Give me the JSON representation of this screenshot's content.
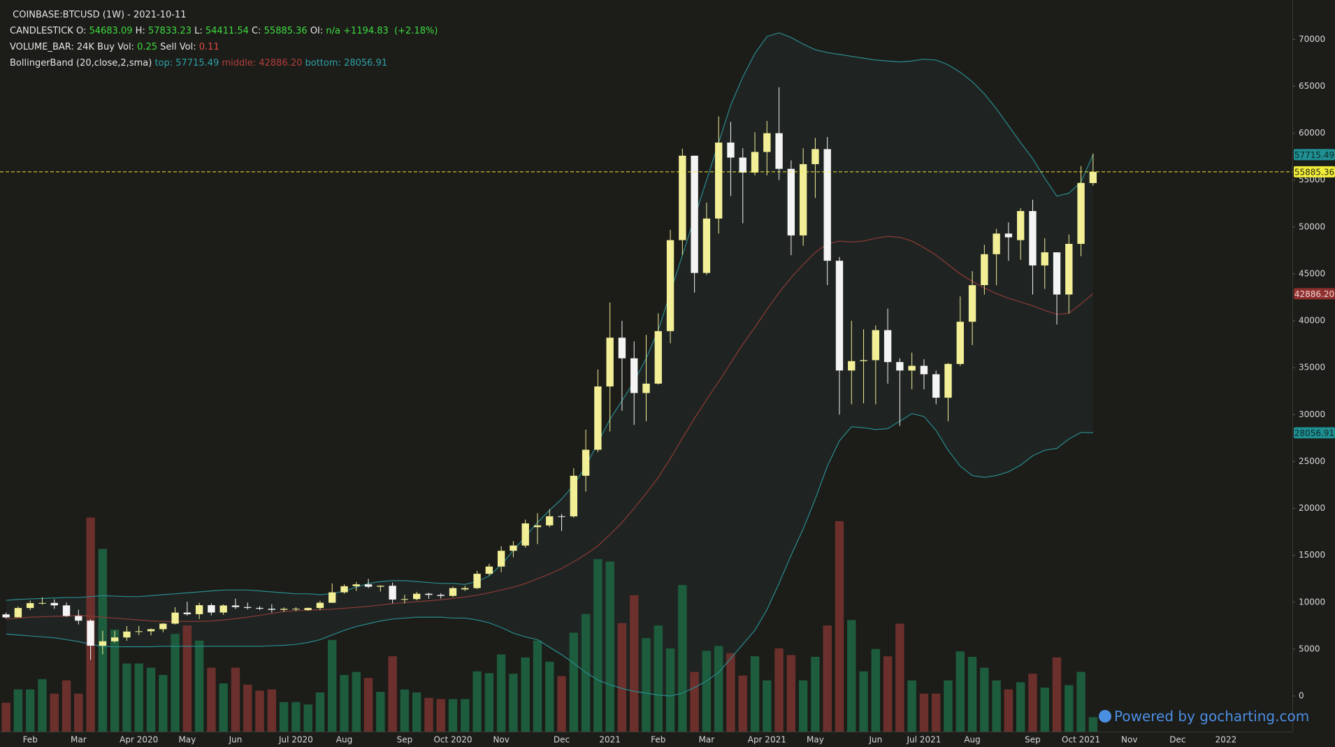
{
  "chart_data": {
    "type": "candlestick",
    "title": "COINBASE:BTCUSD (1W) - 2021-10-11",
    "categories": [
      null,
      null,
      "Feb",
      null,
      null,
      null,
      "Mar",
      null,
      null,
      null,
      null,
      "Apr 2020",
      null,
      null,
      null,
      "May",
      null,
      null,
      null,
      "Jun",
      null,
      null,
      null,
      null,
      "Jul 2020",
      null,
      null,
      null,
      "Aug",
      null,
      null,
      null,
      null,
      "Sep",
      null,
      null,
      null,
      "Oct 2020",
      null,
      null,
      null,
      "Nov",
      null,
      null,
      null,
      null,
      "Dec",
      null,
      null,
      null,
      "2021",
      null,
      null,
      null,
      "Feb",
      null,
      null,
      null,
      "Mar",
      null,
      null,
      null,
      null,
      "Apr 2021",
      null,
      null,
      null,
      "May",
      null,
      null,
      null,
      null,
      "Jun",
      null,
      null,
      null,
      "Jul 2021",
      null,
      null,
      null,
      "Aug",
      null,
      null,
      null,
      null,
      "Sep",
      null,
      null,
      null,
      "Oct 2021",
      null,
      null,
      null,
      "Nov",
      null,
      null,
      null,
      "Dec",
      null,
      null,
      null,
      "2022",
      null,
      null,
      null,
      null,
      null
    ],
    "series": [
      {
        "name": "CANDLESTICK",
        "up_color": "#f3ef96",
        "down_color": "#f4f4f4",
        "open": [
          8700,
          8380,
          9380,
          9900,
          9920,
          9660,
          8530,
          8030,
          5360,
          5830,
          6240,
          6870,
          6900,
          7120,
          7710,
          8890,
          8720,
          9680,
          8900,
          9650,
          9480,
          9390,
          9300,
          9190,
          9290,
          9160,
          9380,
          9940,
          11050,
          11700,
          11900,
          11650,
          11750,
          10280,
          10330,
          10900,
          10780,
          10670,
          11360,
          11500,
          13030,
          13800,
          15480,
          16040,
          18000,
          18190,
          19160,
          19150,
          23480,
          26250,
          33000,
          38200,
          36000,
          32300,
          33300,
          38900,
          48600,
          57600,
          45100,
          50900,
          59000,
          57400,
          55800,
          58000,
          60000,
          56200,
          49100,
          56700,
          58300,
          46400,
          34700,
          35700,
          35800,
          39000,
          35600,
          34700,
          35200,
          34300,
          31800,
          35400,
          39900,
          43800,
          47100,
          49300,
          48600,
          51700,
          45900,
          47300,
          42800,
          48200,
          54683.09,
          null,
          null,
          null,
          null,
          null,
          null,
          null,
          null,
          null,
          null,
          null,
          null,
          null,
          null,
          null,
          null
        ],
        "high": [
          8900,
          9550,
          10170,
          10500,
          10300,
          9960,
          9190,
          8180,
          6950,
          6950,
          7450,
          7470,
          7200,
          7770,
          9460,
          10050,
          9940,
          9870,
          9760,
          10380,
          9960,
          9580,
          9780,
          9450,
          9460,
          9440,
          10160,
          12000,
          11900,
          12150,
          12480,
          11800,
          12090,
          10800,
          11100,
          11000,
          10950,
          11650,
          11750,
          13350,
          14100,
          15960,
          16500,
          18800,
          19480,
          19920,
          19400,
          24280,
          28400,
          34800,
          41950,
          40000,
          37800,
          38500,
          40800,
          49700,
          58350,
          57600,
          52600,
          61800,
          61200,
          58400,
          60100,
          61300,
          64900,
          57100,
          58400,
          59500,
          59600,
          46800,
          40000,
          39100,
          39500,
          41300,
          36000,
          36600,
          35900,
          34700,
          35500,
          42600,
          45300,
          48100,
          49800,
          50500,
          52000,
          52900,
          48800,
          47300,
          49200,
          56500,
          57833.23,
          null,
          null,
          null,
          null,
          null,
          null,
          null,
          null,
          null,
          null,
          null,
          null,
          null,
          null,
          null,
          null
        ],
        "low": [
          8270,
          8380,
          9150,
          9730,
          9300,
          8450,
          7630,
          3860,
          4440,
          5680,
          5880,
          6500,
          6470,
          6790,
          7630,
          8560,
          8200,
          8600,
          8640,
          9270,
          9230,
          9170,
          8900,
          8960,
          9050,
          9080,
          9150,
          9920,
          10900,
          11200,
          11500,
          11130,
          9900,
          9870,
          10200,
          10370,
          10380,
          10550,
          11200,
          11400,
          12850,
          13200,
          14800,
          15800,
          16200,
          18000,
          17600,
          19000,
          21800,
          26000,
          28200,
          30400,
          28900,
          29300,
          33200,
          37600,
          47000,
          43000,
          44900,
          49300,
          53300,
          50400,
          55500,
          55500,
          55000,
          47000,
          48000,
          53100,
          43800,
          30000,
          31100,
          31200,
          31100,
          33300,
          28800,
          32700,
          32700,
          31100,
          29300,
          35200,
          37400,
          42800,
          43800,
          46400,
          46500,
          42800,
          43400,
          39600,
          40800,
          46900,
          54411.54,
          null,
          null,
          null,
          null,
          null,
          null,
          null,
          null,
          null,
          null,
          null,
          null,
          null,
          null,
          null,
          null
        ],
        "close": [
          8380,
          9380,
          9900,
          9920,
          9660,
          8530,
          8030,
          5360,
          5830,
          6240,
          6870,
          6900,
          7120,
          7710,
          8890,
          8720,
          9680,
          8900,
          9650,
          9480,
          9390,
          9300,
          9190,
          9290,
          9300,
          9380,
          9940,
          11050,
          11700,
          11900,
          11650,
          11750,
          10280,
          10330,
          10900,
          10780,
          10670,
          11500,
          11500,
          13030,
          13800,
          15480,
          16040,
          18400,
          18190,
          19160,
          19150,
          23480,
          26250,
          33000,
          38200,
          36000,
          32300,
          33300,
          38900,
          48600,
          57600,
          45100,
          50900,
          59000,
          57400,
          55800,
          58000,
          60000,
          56200,
          49100,
          56700,
          58300,
          46400,
          34700,
          35700,
          35800,
          39000,
          35600,
          34700,
          35200,
          34300,
          31800,
          35400,
          39900,
          43800,
          47100,
          49300,
          48900,
          51700,
          45900,
          47300,
          42800,
          48200,
          54700,
          55885.36,
          null,
          null,
          null,
          null,
          null,
          null,
          null,
          null,
          null,
          null,
          null,
          null,
          null,
          null,
          null,
          null
        ]
      }
    ],
    "volume": {
      "name": "VOLUME_BAR:",
      "axis": "y2",
      "up_color": "#1d5c3c",
      "down_color": "#6b302c",
      "last_value_label": "24K",
      "values": [
        48,
        70,
        70,
        87,
        63,
        85,
        63,
        355,
        303,
        169,
        113,
        113,
        106,
        94,
        162,
        176,
        151,
        106,
        80,
        106,
        78,
        68,
        70,
        49,
        49,
        45,
        65,
        152,
        94,
        99,
        89,
        66,
        125,
        70,
        65,
        56,
        54,
        54,
        54,
        100,
        97,
        128,
        96,
        123,
        151,
        116,
        92,
        164,
        195,
        286,
        282,
        180,
        226,
        155,
        176,
        138,
        243,
        99,
        134,
        142,
        130,
        93,
        125,
        85,
        138,
        127,
        85,
        124,
        176,
        349,
        185,
        100,
        137,
        125,
        179,
        85,
        63,
        63,
        85,
        133,
        124,
        106,
        85,
        70,
        82,
        96,
        73,
        123,
        77,
        99,
        24,
        null,
        null,
        null,
        null,
        null,
        null,
        null,
        null,
        null,
        null,
        null,
        null,
        null,
        null,
        null,
        null
      ]
    },
    "bollinger": {
      "name": "BollingerBand (20,close,2,sma)",
      "fill": "#1f2422",
      "bands": [
        {
          "name": "top:",
          "color": "#2a8b8e",
          "box_color": "#1f8f92",
          "values": [
            10200,
            10300,
            10350,
            10400,
            10450,
            10500,
            10500,
            10600,
            10700,
            10650,
            10600,
            10600,
            10700,
            10800,
            10900,
            11000,
            11100,
            11200,
            11300,
            11300,
            11300,
            11200,
            11100,
            11000,
            10900,
            10900,
            10800,
            10900,
            11200,
            11600,
            12000,
            12200,
            12300,
            12300,
            12200,
            12100,
            12000,
            12000,
            11900,
            12200,
            12800,
            14000,
            15500,
            17000,
            18500,
            19800,
            21000,
            22500,
            24500,
            27000,
            29500,
            31500,
            33500,
            36000,
            39000,
            43000,
            47000,
            51000,
            55000,
            59000,
            63000,
            66000,
            68500,
            70300,
            70700,
            70200,
            69500,
            68900,
            68600,
            68400,
            68200,
            68000,
            67800,
            67700,
            67600,
            67700,
            67900,
            67800,
            67300,
            66500,
            65500,
            64200,
            62600,
            60800,
            59000,
            57300,
            55200,
            53300,
            53600,
            54800,
            57715.49,
            null,
            null,
            null,
            null,
            null,
            null,
            null,
            null,
            null,
            null,
            null,
            null,
            null,
            null,
            null,
            null
          ]
        },
        {
          "name": "middle:",
          "color": "#8d3a37",
          "box_color": "#8e2f2d",
          "last_value_label": "42886.20",
          "values": [
            8200,
            8300,
            8400,
            8450,
            8500,
            8500,
            8600,
            8500,
            8400,
            8300,
            8200,
            8100,
            8000,
            7950,
            7950,
            7950,
            7950,
            8000,
            8100,
            8250,
            8400,
            8600,
            8800,
            9000,
            9100,
            9150,
            9200,
            9250,
            9350,
            9450,
            9550,
            9700,
            9850,
            9950,
            10050,
            10150,
            10250,
            10400,
            10550,
            10750,
            11000,
            11300,
            11600,
            12000,
            12500,
            13000,
            13600,
            14300,
            15100,
            16000,
            17200,
            18500,
            20000,
            21600,
            23300,
            25300,
            27500,
            29600,
            31600,
            33500,
            35500,
            37500,
            39300,
            41200,
            43000,
            44600,
            46000,
            47300,
            48200,
            48500,
            48400,
            48500,
            48800,
            49000,
            48900,
            48500,
            47800,
            47000,
            46000,
            45000,
            44200,
            43500,
            42900,
            42400,
            42000,
            41600,
            41100,
            40700,
            40800,
            41800,
            42886.2,
            null,
            null,
            null,
            null,
            null,
            null,
            null,
            null,
            null,
            null,
            null,
            null,
            null,
            null,
            null,
            null
          ]
        },
        {
          "name": "bottom:",
          "color": "#2a8b8e",
          "box_color": "#1f8f92",
          "values": [
            6600,
            6500,
            6400,
            6300,
            6200,
            6000,
            5800,
            5500,
            5300,
            5250,
            5250,
            5250,
            5250,
            5300,
            5300,
            5300,
            5300,
            5300,
            5300,
            5300,
            5300,
            5300,
            5350,
            5400,
            5500,
            5700,
            6000,
            6500,
            7000,
            7400,
            7700,
            8000,
            8200,
            8300,
            8400,
            8400,
            8400,
            8300,
            8300,
            8100,
            7800,
            7300,
            6700,
            6300,
            6000,
            5200,
            4400,
            3500,
            2500,
            1700,
            1200,
            800,
            500,
            300,
            100,
            0,
            300,
            900,
            1600,
            2500,
            4000,
            5500,
            7000,
            9200,
            12000,
            15000,
            17800,
            21000,
            24500,
            27200,
            28700,
            28600,
            28400,
            28500,
            29300,
            30100,
            29800,
            28300,
            26200,
            24500,
            23500,
            23300,
            23500,
            23900,
            24600,
            25600,
            26200,
            26400,
            27400,
            28100,
            28056.91,
            null,
            null,
            null,
            null,
            null,
            null,
            null,
            null,
            null,
            null,
            null,
            null,
            null,
            null,
            null,
            null
          ]
        }
      ]
    },
    "header": {
      "ohlc_labels": [
        "O:",
        "H:",
        "L:",
        "C:"
      ],
      "oi_label": "OI:",
      "oi": "n/a",
      "change": "+1194.83",
      "change_pct": "(+2.18%)",
      "buy_vol_label": "Buy Vol:",
      "buy_vol": 0.25,
      "sell_vol_label": "Sell Vol:",
      "sell_vol": 0.11
    },
    "last_price_color": "#f0ec3c",
    "ylim": [
      -3800,
      74200
    ],
    "yticks": [
      0,
      5000,
      10000,
      15000,
      20000,
      25000,
      30000,
      35000,
      40000,
      45000,
      50000,
      55000,
      60000,
      65000,
      70000
    ],
    "y2lim": [
      0,
      1213
    ],
    "grid": false,
    "watermark": "Powered by gocharting.com"
  }
}
